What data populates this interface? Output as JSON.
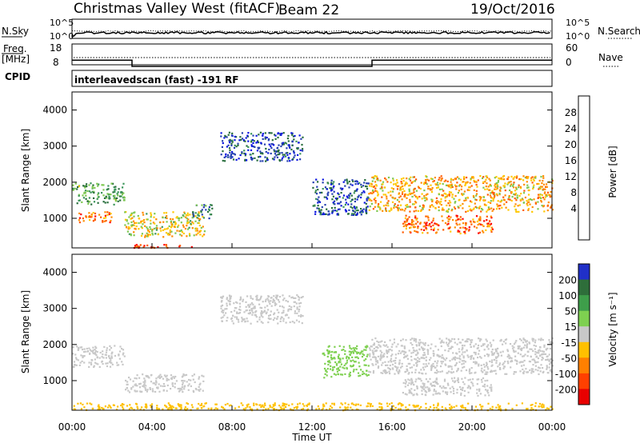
{
  "header": {
    "station": "Christmas Valley West (fitACF)",
    "beam": "Beam 22",
    "date": "19/Oct/2016"
  },
  "noise_panel": {
    "left_label": "N.Sky",
    "right_label": "N.Search",
    "left_ticks": [
      "10^5",
      "10^0"
    ],
    "right_ticks": [
      "10^5",
      "10^0"
    ]
  },
  "freq_panel": {
    "left_label_line1": "Freq.",
    "left_label_line2": "[MHz]",
    "right_label": "Nave",
    "left_ticks": [
      "18",
      "8"
    ],
    "right_ticks": [
      "60",
      "0"
    ]
  },
  "cpid_panel": {
    "label": "CPID",
    "text": "interleavedscan (fast) -191 RF"
  },
  "power_panel": {
    "ylabel": "Slant Range [km]",
    "yticks": [
      "4000",
      "3000",
      "2000",
      "1000"
    ],
    "colorbar_label": "Power [dB]",
    "colorbar_ticks": [
      "28",
      "24",
      "20",
      "16",
      "12",
      "8",
      "4"
    ],
    "colors": [
      "#0a14e0",
      "#2540b0",
      "#286e3c",
      "#3c965a",
      "#7ec850",
      "#ffc800",
      "#ff8c00",
      "#ff5a00",
      "#ff0000"
    ]
  },
  "velocity_panel": {
    "ylabel": "Slant Range [km]",
    "yticks": [
      "4000",
      "3000",
      "2000",
      "1000"
    ],
    "colorbar_label": "Velocity [m s⁻¹]",
    "colorbar_ticks": [
      "200",
      "100",
      "50",
      "15",
      "-15",
      "-50",
      "-100",
      "-200"
    ],
    "colors": [
      "#2030c8",
      "#2e6e3a",
      "#3e9e4a",
      "#7ed050",
      "#c8c8c8",
      "#ffc000",
      "#ff8000",
      "#ff4000",
      "#e80000"
    ]
  },
  "xaxis": {
    "label": "Time UT",
    "ticks": [
      "00:00",
      "04:00",
      "08:00",
      "12:00",
      "16:00",
      "20:00",
      "00:00"
    ]
  },
  "chart_data": {
    "type": "heatmap",
    "title": "Christmas Valley West (fitACF) Beam 22 19/Oct/2016",
    "xlabel": "Time UT",
    "ylabel": "Slant Range [km]",
    "xlim_hours": [
      0,
      24
    ],
    "ylim_km": [
      180,
      4500
    ],
    "frequency_mhz": [
      {
        "start_hour": 0,
        "end_hour": 3,
        "value": 11
      },
      {
        "start_hour": 3,
        "end_hour": 15,
        "value": 8
      },
      {
        "start_hour": 15,
        "end_hour": 24,
        "value": 11
      }
    ],
    "power_regions": [
      {
        "t0": 0,
        "t1": 2.6,
        "r0": 1400,
        "r1": 2000,
        "power_db": 12
      },
      {
        "t0": 0.3,
        "t1": 2.0,
        "r0": 900,
        "r1": 1200,
        "power_db": 24
      },
      {
        "t0": 2.6,
        "t1": 6.6,
        "r0": 500,
        "r1": 1200,
        "power_db": 18
      },
      {
        "t0": 6.0,
        "t1": 7.0,
        "r0": 1000,
        "r1": 1400,
        "power_db": 10
      },
      {
        "t0": 7.4,
        "t1": 11.5,
        "r0": 2600,
        "r1": 3400,
        "power_db": 6
      },
      {
        "t0": 12.0,
        "t1": 14.8,
        "r0": 1100,
        "r1": 2100,
        "power_db": 6
      },
      {
        "t0": 14.8,
        "t1": 24,
        "r0": 1200,
        "r1": 2200,
        "power_db": 20
      },
      {
        "t0": 16.5,
        "t1": 21.0,
        "r0": 600,
        "r1": 1100,
        "power_db": 24
      },
      {
        "t0": 3.0,
        "t1": 6.0,
        "r0": 200,
        "r1": 300,
        "power_db": 28
      }
    ],
    "velocity_regions": [
      {
        "t0": 0,
        "t1": 2.6,
        "r0": 1400,
        "r1": 2000,
        "velocity_ms": 0
      },
      {
        "t0": 2.6,
        "t1": 6.6,
        "r0": 700,
        "r1": 1200,
        "velocity_ms": 0
      },
      {
        "t0": 7.4,
        "t1": 11.5,
        "r0": 2600,
        "r1": 3400,
        "velocity_ms": 0
      },
      {
        "t0": 12.5,
        "t1": 14.8,
        "r0": 1100,
        "r1": 2000,
        "velocity_ms": 30
      },
      {
        "t0": 14.8,
        "t1": 24,
        "r0": 1200,
        "r1": 2200,
        "velocity_ms": 0
      },
      {
        "t0": 16.5,
        "t1": 21.0,
        "r0": 600,
        "r1": 1100,
        "velocity_ms": 0
      },
      {
        "t0": 0,
        "t1": 24,
        "r0": 200,
        "r1": 400,
        "velocity_ms": -30
      }
    ]
  }
}
